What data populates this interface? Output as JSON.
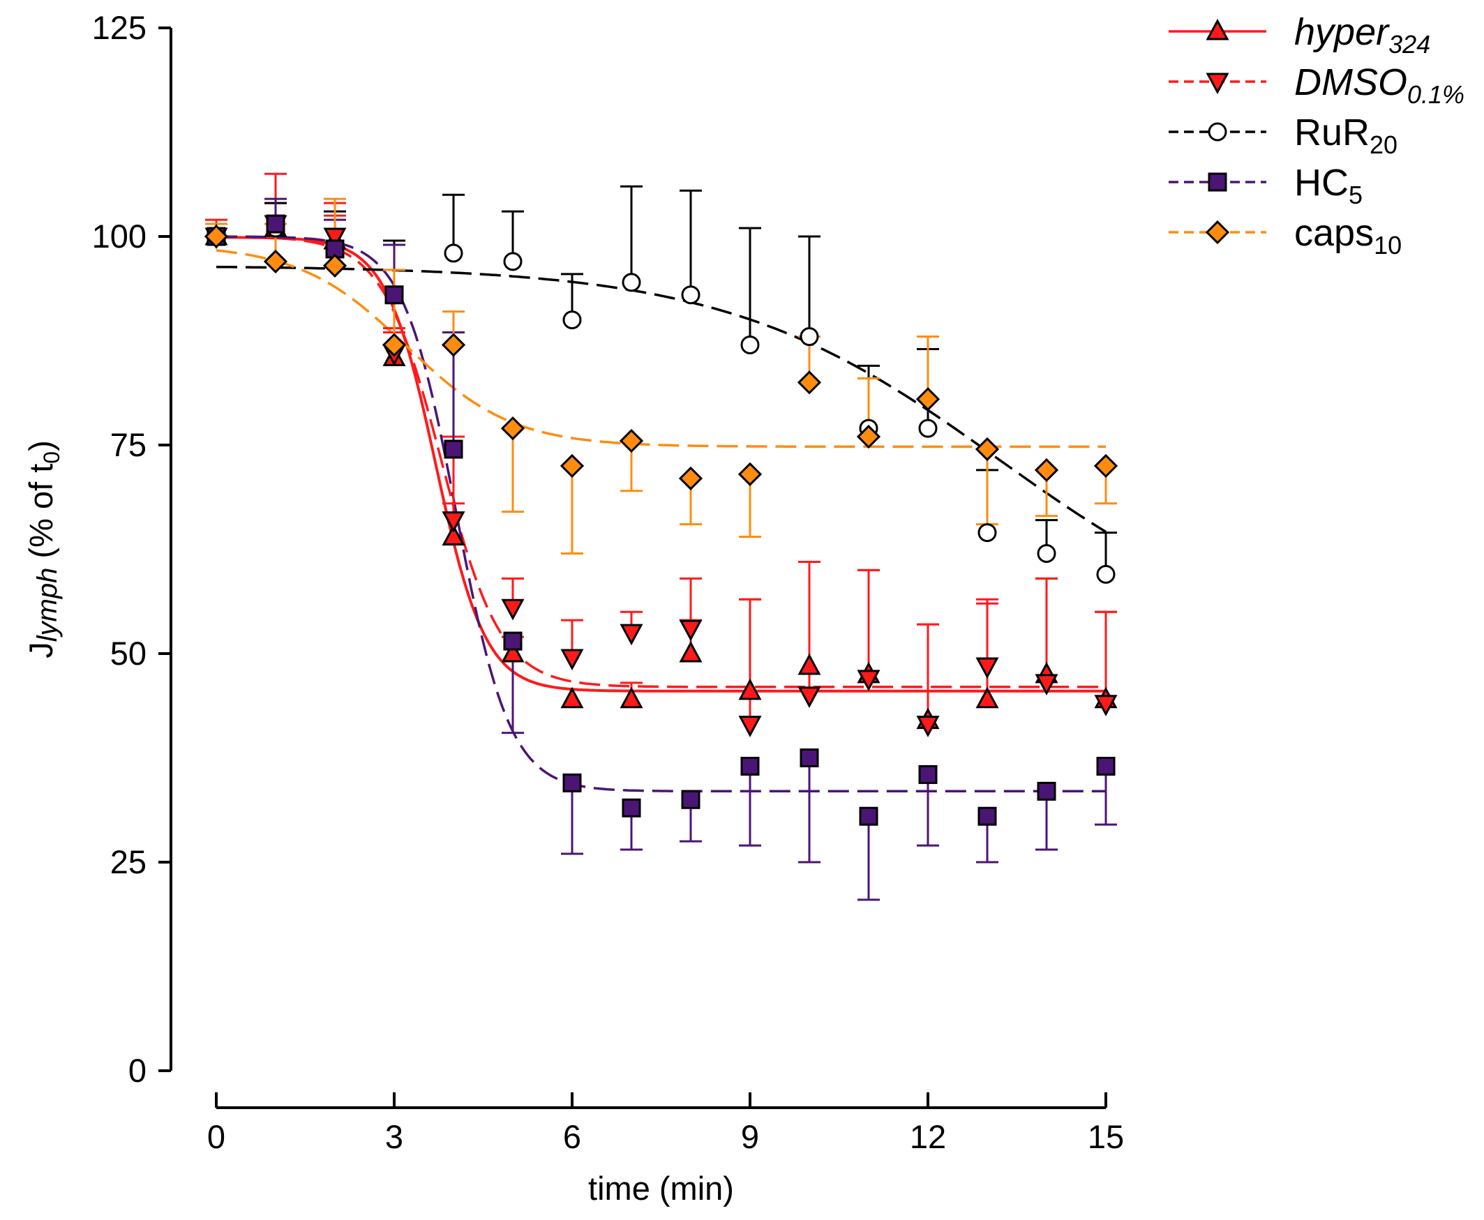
{
  "chart_data": {
    "type": "scatter",
    "title": "",
    "xlabel": "time (min)",
    "ylabel": {
      "main": "J",
      "sub": "lymph",
      "rest": " (% of t",
      "rest_sub": "0",
      "close": ")"
    },
    "xlim": [
      0,
      15
    ],
    "ylim": [
      0,
      125
    ],
    "xticks": [
      0,
      3,
      6,
      9,
      12,
      15
    ],
    "yticks": [
      0,
      25,
      50,
      75,
      100,
      125
    ],
    "x": [
      0,
      1,
      2,
      3,
      4,
      5,
      6,
      7,
      8,
      9,
      10,
      11,
      12,
      13,
      14,
      15
    ],
    "legend_position": "top-right",
    "series": [
      {
        "name": "hyper",
        "name_sub": "324",
        "italic": true,
        "marker": "triangle-up",
        "fill": "#ff1a1a",
        "line_color": "#ff1a1a",
        "err_color": "#ff1a1a",
        "dash": "solid",
        "values": [
          100,
          101,
          99.5,
          85.5,
          64,
          50,
          44.5,
          44.5,
          50,
          45.5,
          48.5,
          47.5,
          42,
          44.5,
          47.5,
          44.5
        ],
        "err": [
          0,
          3,
          3,
          3,
          4,
          2,
          0,
          2,
          4,
          11,
          12.5,
          12.5,
          11.5,
          11.5,
          11.5,
          10.5
        ],
        "fit": [
          99.9,
          45.5,
          3.7,
          0.42
        ]
      },
      {
        "name": "DMSO",
        "name_sub": "0.1%",
        "italic": true,
        "marker": "triangle-down",
        "fill": "#ff1a1a",
        "line_color": "#ff1a1a",
        "err_color": "#ff1a1a",
        "dash": "long",
        "values": [
          100,
          101.5,
          100,
          86,
          66,
          55.5,
          49.5,
          52.5,
          53,
          41.5,
          45,
          47,
          41.5,
          48.5,
          46.5,
          44
        ],
        "err": [
          2,
          6,
          4,
          3,
          10,
          3.5,
          4.5,
          2.5,
          6,
          15,
          16,
          13,
          12,
          8,
          12.5,
          11
        ],
        "fit": [
          100,
          46,
          3.8,
          0.5
        ]
      },
      {
        "name": "RuR",
        "name_sub": "20",
        "italic": false,
        "marker": "circle",
        "fill": "#ffffff",
        "line_color": "#000000",
        "err_color": "#000000",
        "dash": "long",
        "values": [
          100,
          101,
          98.5,
          93,
          98,
          97,
          90,
          94.5,
          93,
          87,
          88,
          77,
          77,
          64.5,
          62,
          59.5
        ],
        "err": [
          0,
          3,
          4.5,
          6.5,
          7,
          6,
          5.5,
          11.5,
          12.5,
          14,
          12,
          7.5,
          9.5,
          7.5,
          4,
          5
        ],
        "fit": [
          96.5,
          50,
          13.2,
          2.3
        ]
      },
      {
        "name": "HC",
        "name_sub": "5",
        "italic": false,
        "marker": "square",
        "fill": "#4b1575",
        "line_color": "#4b1575",
        "err_color": "#4b1575",
        "dash": "long",
        "values": [
          100,
          101.5,
          98.5,
          93,
          74.5,
          51.5,
          34.5,
          31.5,
          32.5,
          36.5,
          37.5,
          30.5,
          35.5,
          30.5,
          33.5,
          36.5
        ],
        "err": [
          0,
          3,
          3.5,
          6,
          14,
          11,
          8.5,
          5,
          5,
          9.5,
          12.5,
          10,
          8.5,
          5.5,
          7,
          7
        ],
        "fit": [
          100,
          33.5,
          4.05,
          0.45
        ]
      },
      {
        "name": "caps",
        "name_sub": "10",
        "italic": false,
        "marker": "diamond",
        "fill": "#ff8c0f",
        "line_color": "#ff8c0f",
        "err_color": "#ff8c0f",
        "dash": "long",
        "values": [
          100,
          97,
          96.5,
          87,
          87,
          77,
          72.5,
          75.5,
          71,
          71.5,
          82.5,
          76,
          80.5,
          74.5,
          72,
          72.5
        ],
        "err": [
          1.5,
          4.5,
          8,
          9,
          4,
          10,
          10.5,
          6,
          5.5,
          7.5,
          5.5,
          7,
          7.5,
          9,
          5.5,
          4.5
        ],
        "fit": [
          99,
          74.8,
          3.2,
          0.9
        ]
      }
    ]
  }
}
